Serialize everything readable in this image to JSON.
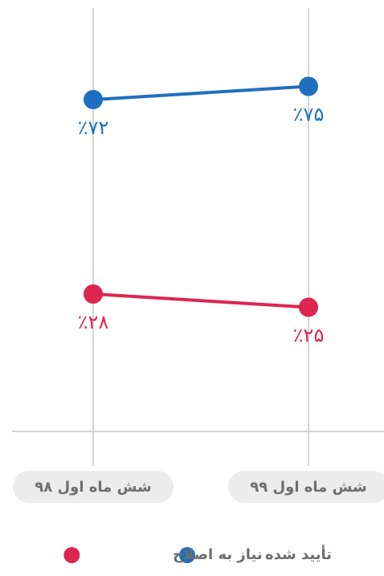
{
  "chart_data": {
    "type": "line",
    "categories": [
      "شش ماه اول ۹۸",
      "شش ماه اول ۹۹"
    ],
    "series": [
      {
        "name": "تأیید شده",
        "color": "#1f6fbf",
        "values": [
          72,
          75
        ],
        "value_labels": [
          "٪۷۲",
          "٪۷۵"
        ]
      },
      {
        "name": "نیاز به اصلاح",
        "color": "#dc2650",
        "values": [
          28,
          25
        ],
        "value_labels": [
          "٪۲۸",
          "٪۲۵"
        ]
      }
    ],
    "ylim": [
      0,
      80
    ]
  }
}
